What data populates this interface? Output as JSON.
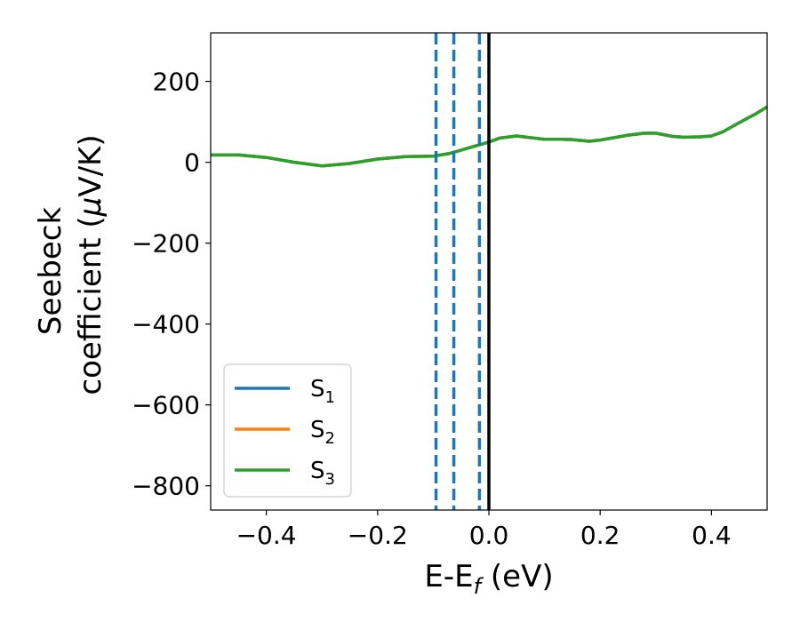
{
  "chart_data": {
    "type": "line",
    "xlabel_main": "E-E",
    "xlabel_sub": "f",
    "xlabel_unit": " (eV)",
    "ylabel_line1": "Seebeck",
    "ylabel_line2": "coefficient  (",
    "ylabel_mu": "μ",
    "ylabel_unit": "V/K)",
    "xlim": [
      -0.5,
      0.5
    ],
    "ylim": [
      -860,
      320
    ],
    "xticks": [
      -0.4,
      -0.2,
      0.0,
      0.2,
      0.4
    ],
    "xtick_labels": [
      "−0.4",
      "−0.2",
      "0.0",
      "0.2",
      "0.4"
    ],
    "yticks": [
      200,
      0,
      -200,
      -400,
      -600,
      -800
    ],
    "ytick_labels": [
      "200",
      "0",
      "−200",
      "−400",
      "−600",
      "−800"
    ],
    "vlines": [
      {
        "x": -0.095,
        "style": "dashed",
        "color": "#1f77b4"
      },
      {
        "x": -0.063,
        "style": "dashed",
        "color": "#1f77b4"
      },
      {
        "x": -0.017,
        "style": "dashed",
        "color": "#1f77b4"
      },
      {
        "x": 0.0,
        "style": "solid",
        "color": "#000000"
      }
    ],
    "legend_position": "lower-left",
    "series": [
      {
        "name": "S",
        "sub": "1",
        "color": "#1f77b4",
        "x": [
          -0.5,
          -0.45,
          -0.4,
          -0.35,
          -0.3,
          -0.25,
          -0.2,
          -0.15,
          -0.1,
          -0.07,
          -0.05,
          -0.03,
          0.0,
          0.02,
          0.05,
          0.08,
          0.1,
          0.13,
          0.15,
          0.18,
          0.2,
          0.23,
          0.25,
          0.28,
          0.3,
          0.33,
          0.35,
          0.38,
          0.4,
          0.42,
          0.45,
          0.48,
          0.5
        ],
        "y": [
          18,
          18,
          12,
          0,
          -9,
          -3,
          8,
          14,
          15,
          22,
          30,
          38,
          50,
          60,
          65,
          60,
          57,
          57,
          56,
          52,
          55,
          62,
          67,
          72,
          72,
          64,
          62,
          63,
          65,
          75,
          98,
          120,
          137
        ]
      },
      {
        "name": "S",
        "sub": "2",
        "color": "#ff7f0e",
        "x": [
          -0.5,
          -0.45,
          -0.4,
          -0.35,
          -0.3,
          -0.25,
          -0.2,
          -0.15,
          -0.1,
          -0.07,
          -0.05,
          -0.03,
          0.0,
          0.02,
          0.05,
          0.08,
          0.1,
          0.13,
          0.15,
          0.18,
          0.2,
          0.23,
          0.25,
          0.28,
          0.3,
          0.33,
          0.35,
          0.38,
          0.4,
          0.42,
          0.45,
          0.48,
          0.5
        ],
        "y": [
          18,
          18,
          12,
          0,
          -9,
          -3,
          8,
          14,
          15,
          22,
          30,
          38,
          50,
          60,
          65,
          60,
          57,
          57,
          56,
          52,
          55,
          62,
          67,
          72,
          72,
          64,
          62,
          63,
          65,
          75,
          98,
          120,
          137
        ]
      },
      {
        "name": "S",
        "sub": "3",
        "color": "#2ca02c",
        "x": [
          -0.5,
          -0.45,
          -0.4,
          -0.35,
          -0.3,
          -0.25,
          -0.2,
          -0.15,
          -0.1,
          -0.07,
          -0.05,
          -0.03,
          0.0,
          0.02,
          0.05,
          0.08,
          0.1,
          0.13,
          0.15,
          0.18,
          0.2,
          0.23,
          0.25,
          0.28,
          0.3,
          0.33,
          0.35,
          0.38,
          0.4,
          0.42,
          0.45,
          0.48,
          0.5
        ],
        "y": [
          18,
          18,
          12,
          0,
          -9,
          -3,
          8,
          14,
          15,
          22,
          30,
          38,
          50,
          60,
          65,
          60,
          57,
          57,
          56,
          52,
          55,
          62,
          67,
          72,
          72,
          64,
          62,
          63,
          65,
          75,
          98,
          120,
          137
        ]
      }
    ]
  }
}
